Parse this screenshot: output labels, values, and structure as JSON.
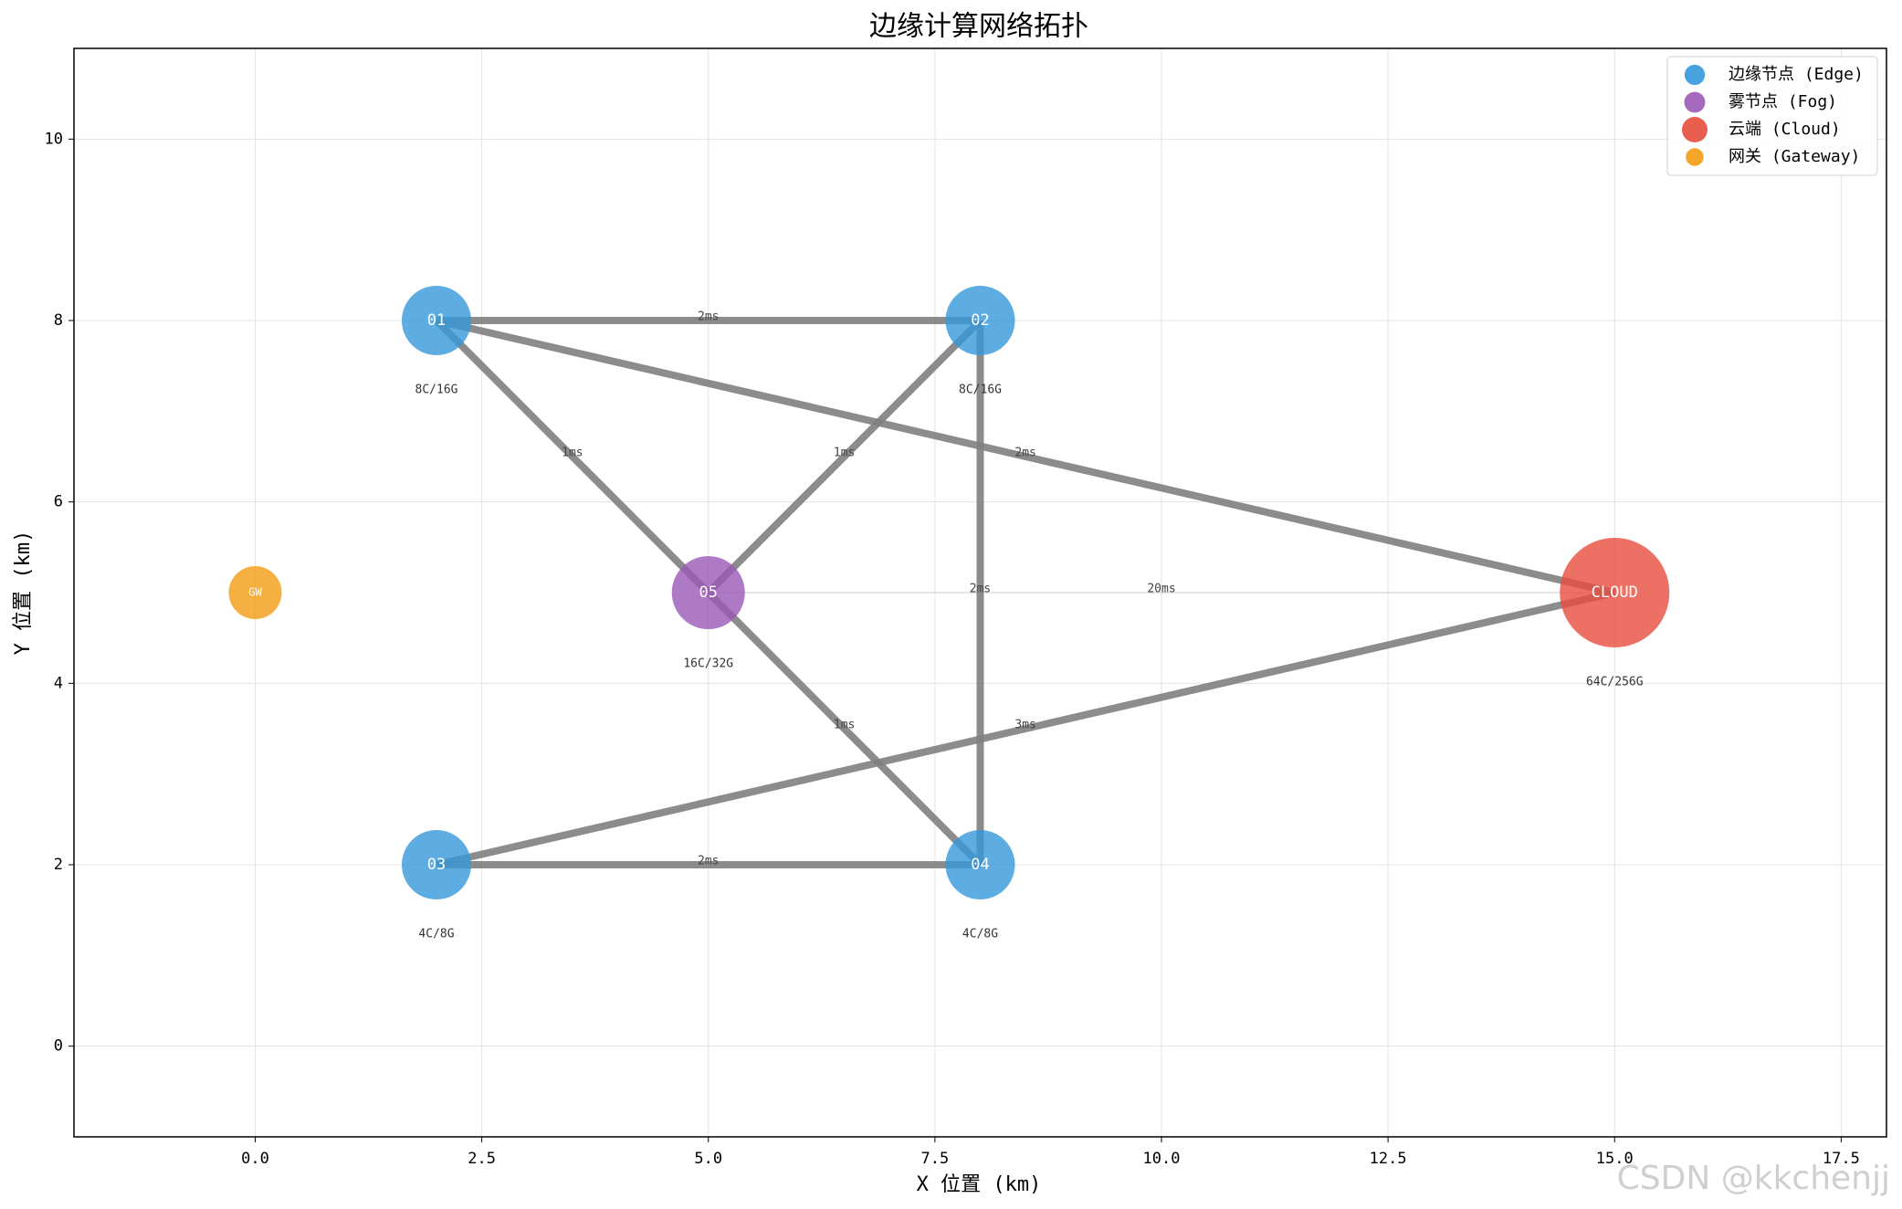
{
  "chart_data": {
    "type": "network",
    "title": "边缘计算网络拓扑",
    "x_label": "X 位置 (km)",
    "y_label": "Y 位置 (km)",
    "xlim": [
      -2,
      18
    ],
    "ylim": [
      -1,
      11
    ],
    "xticks": [
      {
        "value": 0,
        "label": "0.0"
      },
      {
        "value": 2.5,
        "label": "2.5"
      },
      {
        "value": 5,
        "label": "5.0"
      },
      {
        "value": 7.5,
        "label": "7.5"
      },
      {
        "value": 10,
        "label": "10.0"
      },
      {
        "value": 12.5,
        "label": "12.5"
      },
      {
        "value": 15,
        "label": "15.0"
      },
      {
        "value": 17.5,
        "label": "17.5"
      }
    ],
    "yticks": [
      0,
      2,
      4,
      6,
      8,
      10
    ],
    "grid": true,
    "legend": "upper right",
    "node_types": [
      {
        "key": "edge",
        "name": "边缘节点 (Edge)",
        "color": "#3498db",
        "size": 38
      },
      {
        "key": "fog",
        "name": "雾节点 (Fog)",
        "color": "#9b59b6",
        "size": 40
      },
      {
        "key": "cloud",
        "name": "云端 (Cloud)",
        "color": "#e74c3c",
        "size": 60
      },
      {
        "key": "gateway",
        "name": "网关 (Gateway)",
        "color": "#f39c12",
        "size": 29
      }
    ],
    "nodes": [
      {
        "label": "01",
        "type": "edge",
        "x": 2,
        "y": 8,
        "spec": "8C/16G"
      },
      {
        "label": "02",
        "type": "edge",
        "x": 8,
        "y": 8,
        "spec": "8C/16G"
      },
      {
        "label": "03",
        "type": "edge",
        "x": 2,
        "y": 2,
        "spec": "4C/8G"
      },
      {
        "label": "04",
        "type": "edge",
        "x": 8,
        "y": 2,
        "spec": "4C/8G"
      },
      {
        "label": "05",
        "type": "fog",
        "x": 5,
        "y": 5,
        "spec": "16C/32G"
      },
      {
        "label": "CLOUD",
        "type": "cloud",
        "x": 15,
        "y": 5,
        "spec": "64C/256G"
      },
      {
        "label": "GW",
        "type": "gateway",
        "x": 0,
        "y": 5
      }
    ],
    "edges": [
      {
        "from": 0,
        "to": 1,
        "label": "2ms",
        "linewidth": 8
      },
      {
        "from": 0,
        "to": 4,
        "label": "1ms",
        "linewidth": 8
      },
      {
        "from": 1,
        "to": 4,
        "label": "1ms",
        "linewidth": 8
      },
      {
        "from": 1,
        "to": 3,
        "label": "2ms",
        "linewidth": 8
      },
      {
        "from": 0,
        "to": 5,
        "label": "2ms",
        "linewidth": 8
      },
      {
        "from": 2,
        "to": 3,
        "label": "2ms",
        "linewidth": 8
      },
      {
        "from": 4,
        "to": 3,
        "label": "1ms",
        "linewidth": 8
      },
      {
        "from": 2,
        "to": 5,
        "label": "3ms",
        "linewidth": 8
      },
      {
        "from": 4,
        "to": 5,
        "label": "20ms",
        "linewidth": 1
      }
    ],
    "edge_color": "#808080",
    "watermark": "CSDN @kkchenjj"
  }
}
